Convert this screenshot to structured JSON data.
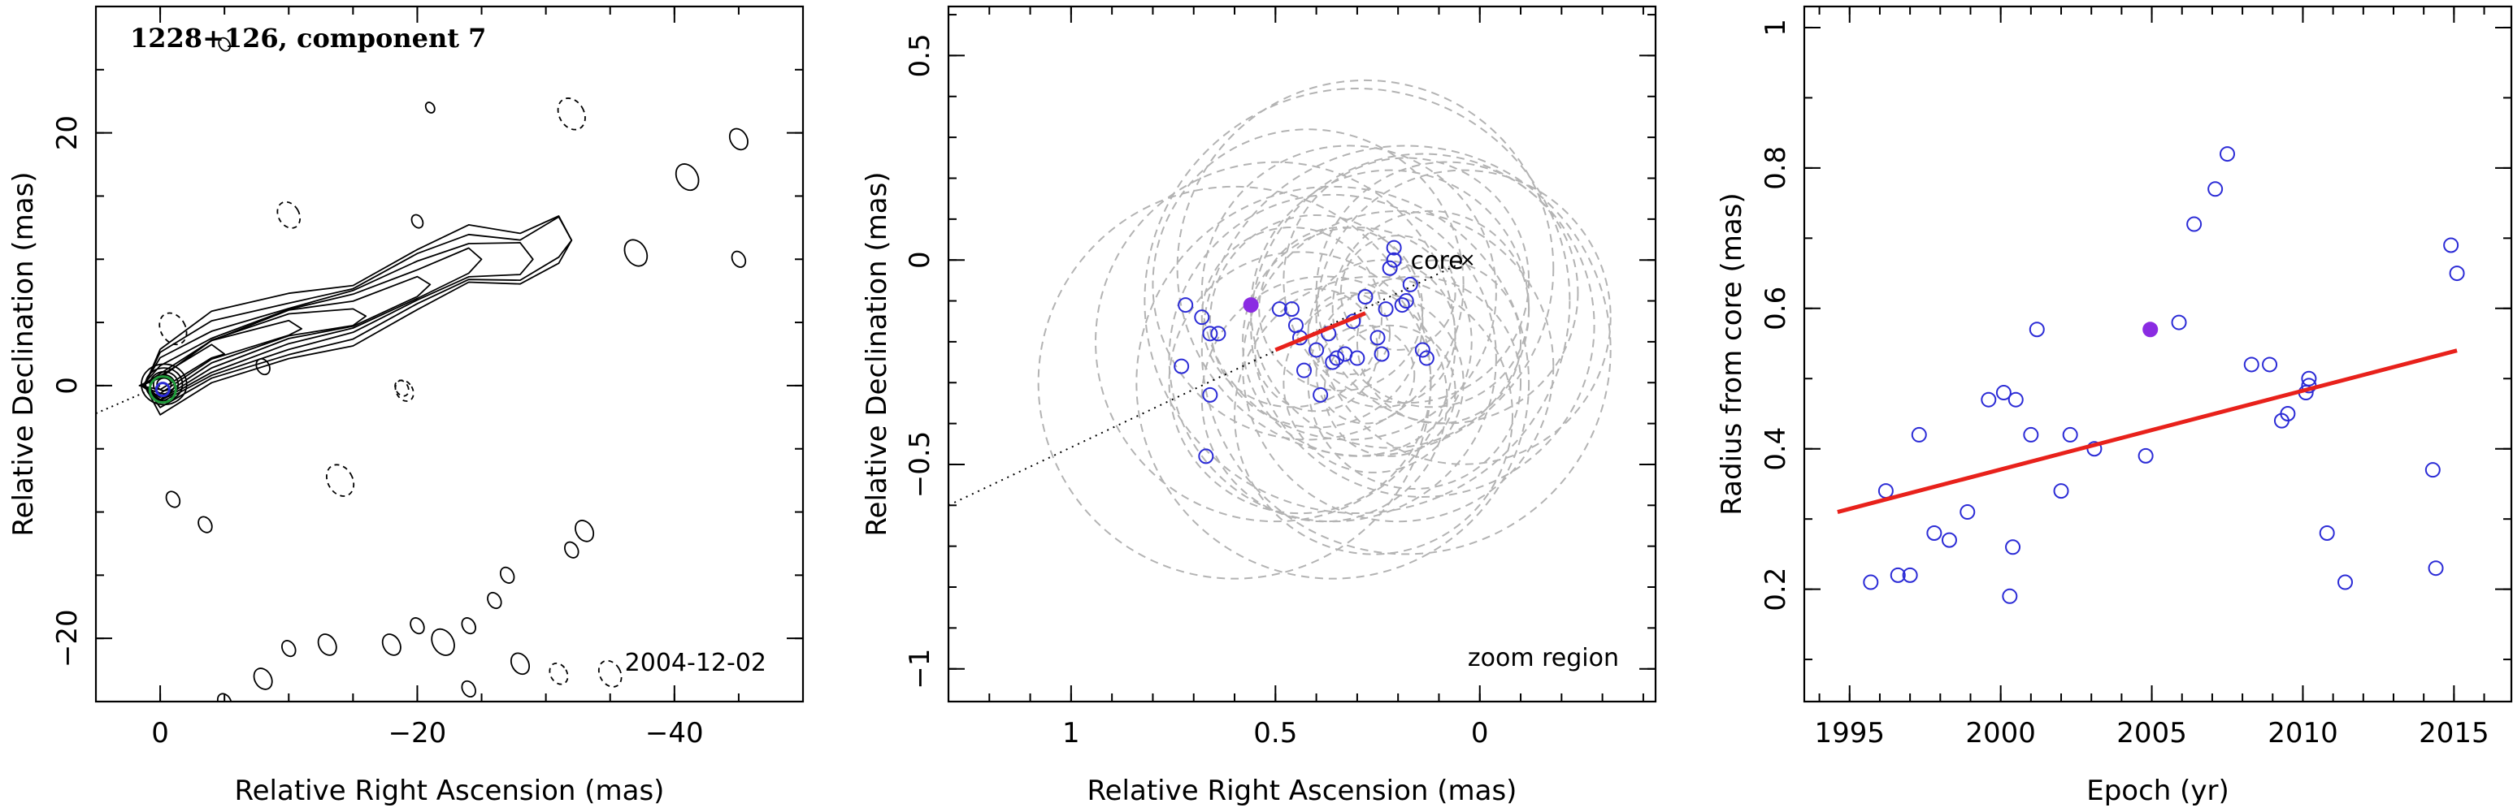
{
  "chart_data": [
    {
      "type": "contour",
      "title": "1228+126, component 7",
      "annotation": "2004-12-02",
      "xlabel": "Relative Right Ascension (mas)",
      "ylabel": "Relative Declination (mas)",
      "xlim": [
        5,
        -50
      ],
      "ylim": [
        -25,
        30
      ],
      "x_ticks": [
        0,
        -20,
        -40
      ],
      "y_ticks": [
        -20,
        0,
        20
      ],
      "jet_ridge": [
        [
          0,
          0
        ],
        [
          -4,
          2.5
        ],
        [
          -10,
          4.5
        ],
        [
          -15,
          5.5
        ],
        [
          -20,
          8
        ],
        [
          -24,
          10
        ],
        [
          -28,
          10
        ],
        [
          -31,
          11.5
        ]
      ],
      "jet_direction_line": [
        [
          5,
          -2.2
        ],
        [
          0,
          0
        ]
      ],
      "component": {
        "ra": -0.2,
        "dec": -0.3
      },
      "color_component": "#1f9a3a",
      "color_marker": "#2b2bd6"
    },
    {
      "type": "scatter",
      "annotation_core": "core",
      "annotation_zoom": "zoom region",
      "xlabel": "Relative Right Ascension (mas)",
      "ylabel": "Relative Declination (mas)",
      "xlim": [
        1.3,
        -0.43
      ],
      "ylim": [
        -1.08,
        0.62
      ],
      "x_ticks": [
        1,
        0.5,
        0
      ],
      "y_ticks": [
        -1,
        -0.5,
        0,
        0.5
      ],
      "core": {
        "x": 0.03,
        "y": 0.0
      },
      "points": [
        [
          0.72,
          -0.11
        ],
        [
          0.68,
          -0.14
        ],
        [
          0.66,
          -0.18
        ],
        [
          0.64,
          -0.18
        ],
        [
          0.73,
          -0.26
        ],
        [
          0.66,
          -0.33
        ],
        [
          0.67,
          -0.48
        ],
        [
          0.49,
          -0.12
        ],
        [
          0.46,
          -0.12
        ],
        [
          0.45,
          -0.16
        ],
        [
          0.44,
          -0.19
        ],
        [
          0.43,
          -0.27
        ],
        [
          0.4,
          -0.22
        ],
        [
          0.39,
          -0.33
        ],
        [
          0.37,
          -0.18
        ],
        [
          0.36,
          -0.25
        ],
        [
          0.35,
          -0.24
        ],
        [
          0.33,
          -0.23
        ],
        [
          0.31,
          -0.15
        ],
        [
          0.3,
          -0.24
        ],
        [
          0.28,
          -0.09
        ],
        [
          0.25,
          -0.19
        ],
        [
          0.24,
          -0.23
        ],
        [
          0.23,
          -0.12
        ],
        [
          0.22,
          -0.02
        ],
        [
          0.21,
          0.0
        ],
        [
          0.21,
          0.03
        ],
        [
          0.19,
          -0.11
        ],
        [
          0.18,
          -0.1
        ],
        [
          0.17,
          -0.06
        ],
        [
          0.14,
          -0.22
        ],
        [
          0.13,
          -0.24
        ]
      ],
      "highlight_point": [
        0.56,
        -0.11
      ],
      "fit_line": [
        [
          0.5,
          -0.22
        ],
        [
          0.28,
          -0.13
        ]
      ],
      "direction_line": [
        [
          1.3,
          -0.6
        ],
        [
          0.03,
          0.0
        ]
      ],
      "circles": [
        [
          0.3,
          -0.2,
          0.28
        ],
        [
          0.22,
          -0.12,
          0.34
        ],
        [
          0.36,
          -0.24,
          0.4
        ],
        [
          0.18,
          -0.05,
          0.3
        ],
        [
          0.4,
          -0.15,
          0.26
        ],
        [
          0.26,
          -0.3,
          0.22
        ],
        [
          0.14,
          -0.16,
          0.42
        ],
        [
          0.32,
          -0.08,
          0.36
        ],
        [
          0.2,
          -0.26,
          0.38
        ],
        [
          0.44,
          -0.3,
          0.32
        ],
        [
          0.1,
          -0.2,
          0.2
        ],
        [
          0.28,
          -0.02,
          0.46
        ],
        [
          0.38,
          -0.34,
          0.3
        ],
        [
          0.24,
          -0.18,
          0.18
        ],
        [
          0.16,
          -0.3,
          0.26
        ],
        [
          0.34,
          -0.12,
          0.2
        ],
        [
          0.08,
          -0.08,
          0.32
        ],
        [
          0.42,
          -0.06,
          0.38
        ],
        [
          0.26,
          -0.38,
          0.34
        ],
        [
          0.5,
          -0.2,
          0.44
        ],
        [
          0.18,
          -0.22,
          0.5
        ],
        [
          0.3,
          -0.1,
          0.52
        ],
        [
          0.36,
          -0.3,
          0.48
        ],
        [
          0.12,
          -0.12,
          0.24
        ],
        [
          0.22,
          -0.32,
          0.16
        ],
        [
          0.4,
          -0.22,
          0.15
        ],
        [
          0.28,
          -0.28,
          0.12
        ],
        [
          0.32,
          -0.18,
          0.1
        ],
        [
          0.2,
          -0.08,
          0.14
        ],
        [
          0.46,
          -0.14,
          0.22
        ],
        [
          0.6,
          -0.3,
          0.48
        ],
        [
          0.04,
          -0.14,
          0.36
        ]
      ],
      "color_points": "#2b2bd6",
      "color_highlight": "#8a2be2",
      "color_fit": "#e8211b",
      "color_circles": "#b3b3b3"
    },
    {
      "type": "scatter",
      "xlabel": "Epoch (yr)",
      "ylabel": "Radius from core (mas)",
      "xlim": [
        1993.5,
        2016.9
      ],
      "ylim": [
        0.04,
        1.03
      ],
      "x_ticks": [
        1995,
        2000,
        2005,
        2010,
        2015
      ],
      "y_ticks": [
        0.2,
        0.4,
        0.6,
        0.8,
        1
      ],
      "points": [
        [
          1995.7,
          0.21
        ],
        [
          1996.2,
          0.34
        ],
        [
          1996.6,
          0.22
        ],
        [
          1997.0,
          0.22
        ],
        [
          1997.3,
          0.42
        ],
        [
          1997.8,
          0.28
        ],
        [
          1998.3,
          0.27
        ],
        [
          1998.9,
          0.31
        ],
        [
          1999.6,
          0.47
        ],
        [
          2000.1,
          0.48
        ],
        [
          2000.3,
          0.19
        ],
        [
          2000.4,
          0.26
        ],
        [
          2000.5,
          0.47
        ],
        [
          2001.0,
          0.42
        ],
        [
          2001.2,
          0.57
        ],
        [
          2002.0,
          0.34
        ],
        [
          2002.3,
          0.42
        ],
        [
          2003.1,
          0.4
        ],
        [
          2004.8,
          0.39
        ],
        [
          2005.9,
          0.58
        ],
        [
          2006.4,
          0.72
        ],
        [
          2007.1,
          0.77
        ],
        [
          2007.5,
          0.82
        ],
        [
          2008.3,
          0.52
        ],
        [
          2008.9,
          0.52
        ],
        [
          2009.3,
          0.44
        ],
        [
          2009.5,
          0.45
        ],
        [
          2010.1,
          0.48
        ],
        [
          2010.2,
          0.5
        ],
        [
          2010.2,
          0.49
        ],
        [
          2010.8,
          0.28
        ],
        [
          2011.4,
          0.21
        ],
        [
          2014.3,
          0.37
        ],
        [
          2014.4,
          0.23
        ],
        [
          2014.9,
          0.69
        ],
        [
          2015.1,
          0.65
        ]
      ],
      "highlight_point": [
        2004.95,
        0.57
      ],
      "fit_line": [
        [
          1994.6,
          0.31
        ],
        [
          2015.1,
          0.54
        ]
      ],
      "color_points": "#2b2bd6",
      "color_highlight": "#8a2be2",
      "color_fit": "#e8211b"
    }
  ]
}
